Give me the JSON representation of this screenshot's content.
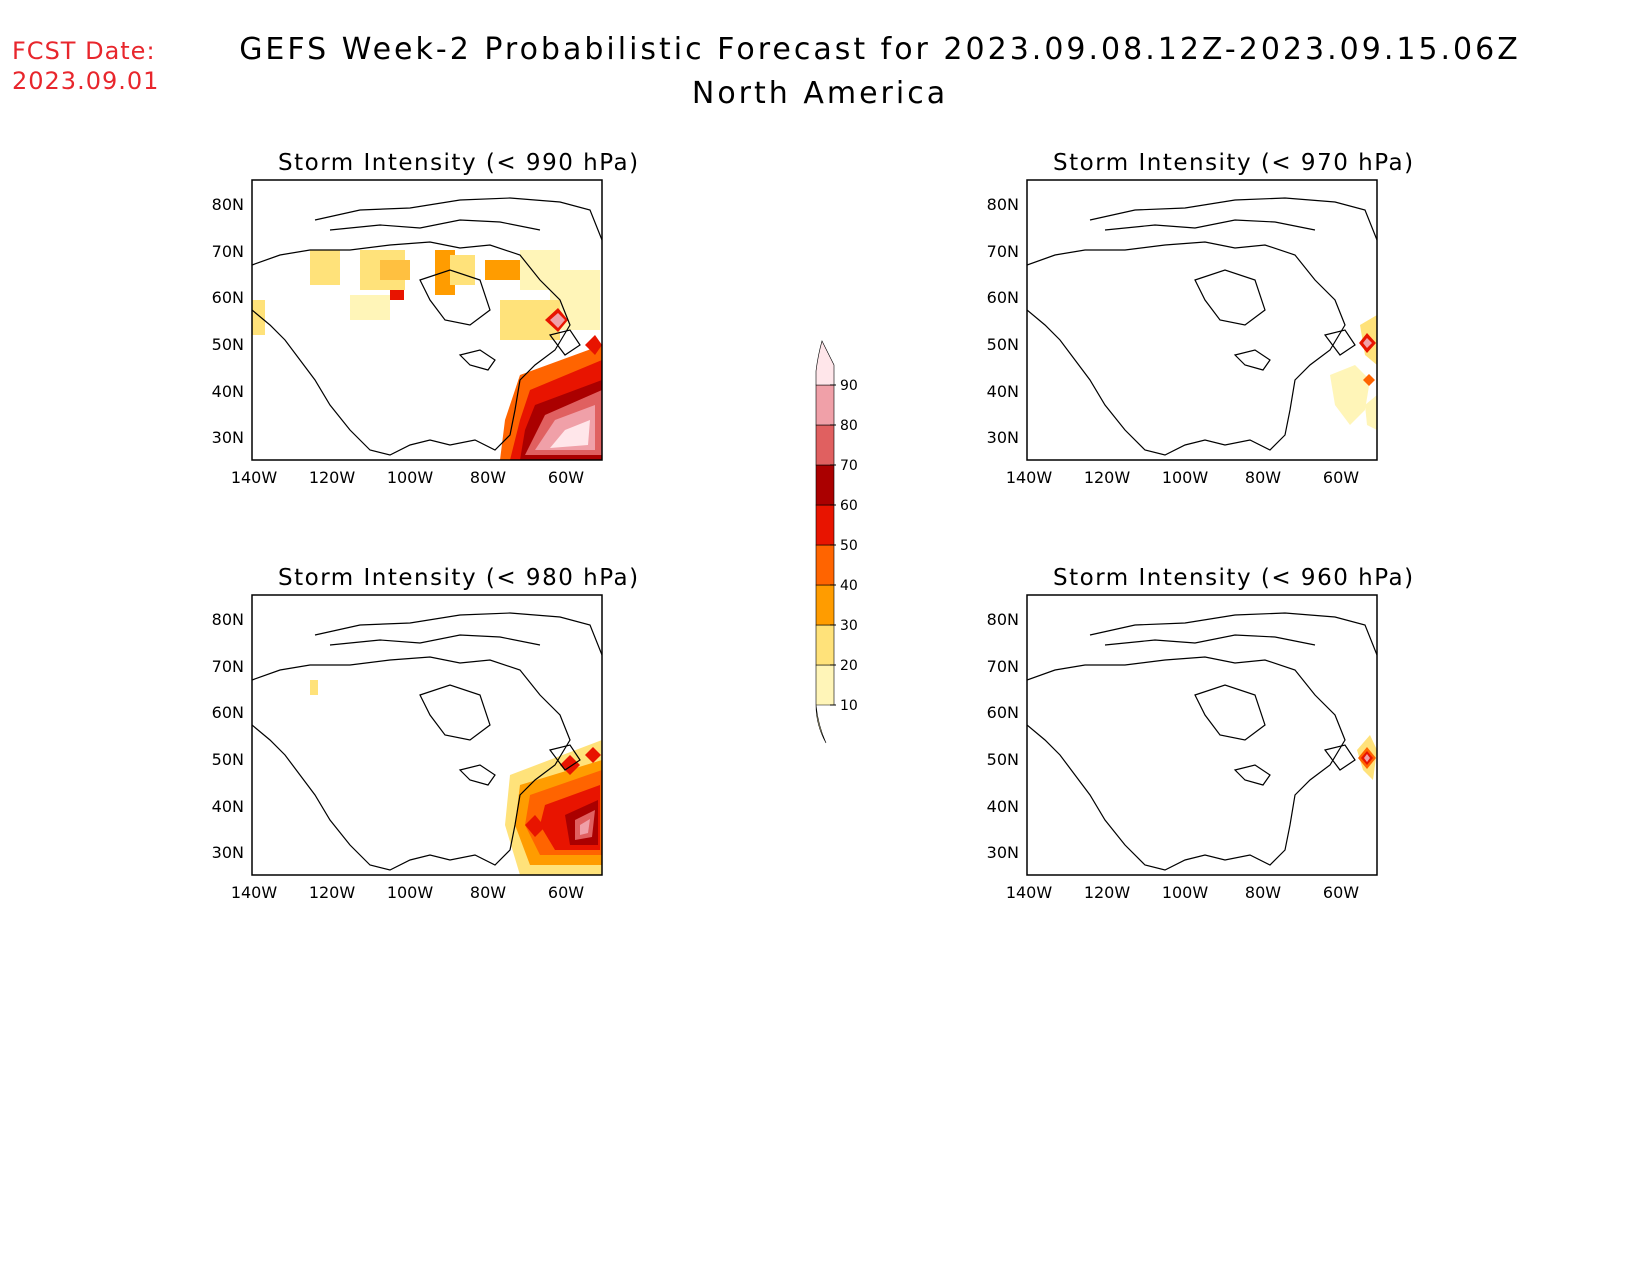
{
  "forecast_date": {
    "label": "FCST Date:",
    "value": "2023.09.01"
  },
  "title": "GEFS Week-2 Probabilistic Forecast for 2023.09.08.12Z-2023.09.15.06Z",
  "subtitle": "North America",
  "axis": {
    "lat_labels": [
      "80N",
      "70N",
      "60N",
      "50N",
      "40N",
      "30N"
    ],
    "lon_labels": [
      "140W",
      "120W",
      "100W",
      "80W",
      "60W"
    ]
  },
  "panels": [
    {
      "id": "p990",
      "title": "Storm Intensity (< 990 hPa)"
    },
    {
      "id": "p970",
      "title": "Storm Intensity (< 970 hPa)"
    },
    {
      "id": "p980",
      "title": "Storm Intensity (< 980 hPa)"
    },
    {
      "id": "p960",
      "title": "Storm Intensity (< 960 hPa)"
    }
  ],
  "colorbar": {
    "levels": [
      "10",
      "20",
      "30",
      "40",
      "50",
      "60",
      "70",
      "80",
      "90"
    ],
    "colors": [
      "#fff5b8",
      "#ffe27a",
      "#ff9c00",
      "#ff6400",
      "#e81400",
      "#aa0000",
      "#e06060",
      "#f0a0a8",
      "#ffe6ea"
    ]
  },
  "colors": {
    "forecast_date": "#e8262c"
  }
}
